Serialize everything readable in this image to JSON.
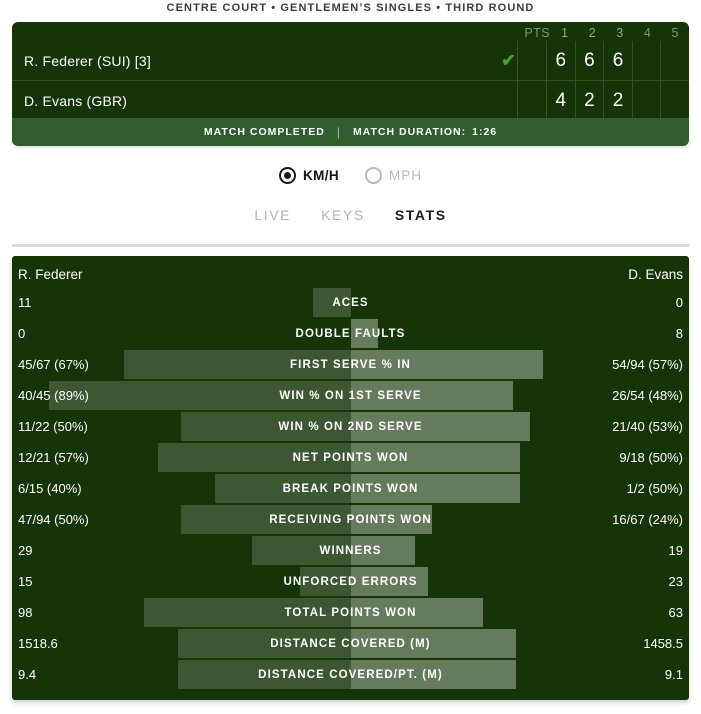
{
  "header": {
    "title": "CENTRE COURT • GENTLEMEN’S SINGLES • THIRD ROUND"
  },
  "scoreboard": {
    "columns": [
      "PTS",
      "1",
      "2",
      "3",
      "4",
      "5"
    ],
    "players": [
      {
        "name": "R. Federer (SUI) [3]",
        "winner": true,
        "check_icon": "✔",
        "pts": "",
        "sets": [
          "6",
          "6",
          "6",
          "",
          ""
        ]
      },
      {
        "name": "D. Evans (GBR)",
        "winner": false,
        "check_icon": "",
        "pts": "",
        "sets": [
          "4",
          "2",
          "2",
          "",
          ""
        ]
      }
    ],
    "status": {
      "completed": "MATCH COMPLETED",
      "separator": "|",
      "duration_label": "MATCH DURATION:",
      "duration_value": "1:26"
    }
  },
  "unit_toggle": {
    "options": [
      {
        "label": "KM/H",
        "selected": true
      },
      {
        "label": "MPH",
        "selected": false
      }
    ]
  },
  "tabs": [
    {
      "label": "LIVE",
      "active": false
    },
    {
      "label": "KEYS",
      "active": false
    },
    {
      "label": "STATS",
      "active": true
    }
  ],
  "stats": {
    "left_player": "R. Federer",
    "right_player": "D. Evans",
    "rows": [
      {
        "label": "ACES",
        "left": "11",
        "right": "0",
        "left_pct": 11,
        "right_pct": 0
      },
      {
        "label": "DOUBLE FAULTS",
        "left": "0",
        "right": "8",
        "left_pct": 0,
        "right_pct": 8
      },
      {
        "label": "FIRST SERVE % IN",
        "left": "45/67 (67%)",
        "right": "54/94 (57%)",
        "left_pct": 67,
        "right_pct": 57
      },
      {
        "label": "WIN % ON 1ST SERVE",
        "left": "40/45 (89%)",
        "right": "26/54 (48%)",
        "left_pct": 89,
        "right_pct": 48
      },
      {
        "label": "WIN % ON 2ND SERVE",
        "left": "11/22 (50%)",
        "right": "21/40 (53%)",
        "left_pct": 50,
        "right_pct": 53
      },
      {
        "label": "NET POINTS WON",
        "left": "12/21 (57%)",
        "right": "9/18 (50%)",
        "left_pct": 57,
        "right_pct": 50
      },
      {
        "label": "BREAK POINTS WON",
        "left": "6/15 (40%)",
        "right": "1/2 (50%)",
        "left_pct": 40,
        "right_pct": 50
      },
      {
        "label": "RECEIVING POINTS WON",
        "left": "47/94 (50%)",
        "right": "16/67 (24%)",
        "left_pct": 50,
        "right_pct": 24
      },
      {
        "label": "WINNERS",
        "left": "29",
        "right": "19",
        "left_pct": 29,
        "right_pct": 19
      },
      {
        "label": "UNFORCED ERRORS",
        "left": "15",
        "right": "23",
        "left_pct": 15,
        "right_pct": 23
      },
      {
        "label": "TOTAL POINTS WON",
        "left": "98",
        "right": "63",
        "left_pct": 61,
        "right_pct": 39
      },
      {
        "label": "DISTANCE COVERED (M)",
        "left": "1518.6",
        "right": "1458.5",
        "left_pct": 51,
        "right_pct": 49
      },
      {
        "label": "DISTANCE COVERED/PT. (M)",
        "left": "9.4",
        "right": "9.1",
        "left_pct": 51,
        "right_pct": 49
      }
    ]
  },
  "colors": {
    "panel_green": "#153509",
    "status_green": "#2f5d30",
    "check_green": "#4c9e35",
    "bar_left": "rgba(255,255,255,0.17)",
    "bar_right": "rgba(255,255,255,0.35)"
  }
}
